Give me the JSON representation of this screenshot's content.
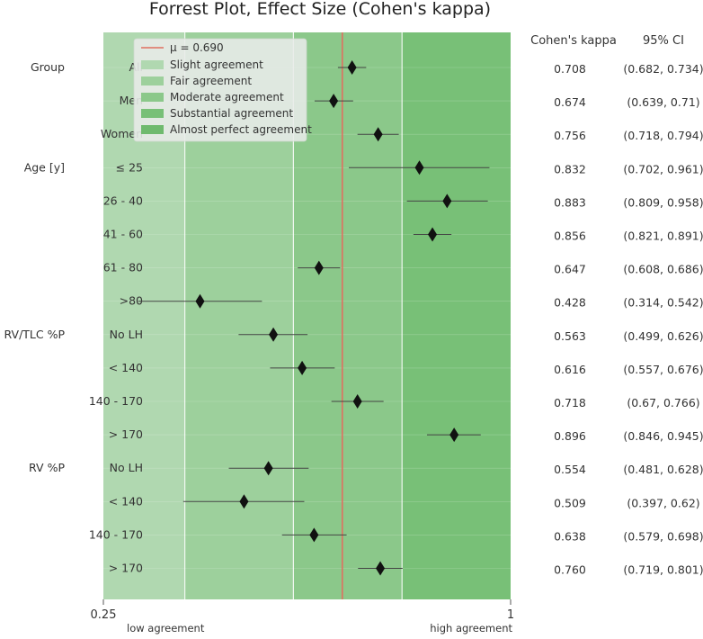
{
  "chart_data": {
    "type": "forest",
    "title": "Forrest Plot, Effect Size (Cohen's kappa)",
    "xlim": [
      0.25,
      1
    ],
    "x_ticks": [
      "0.25",
      "1"
    ],
    "x_tick_notes": [
      "low agreement",
      "high agreement"
    ],
    "reference": {
      "label": "μ = 0.690",
      "value": 0.69,
      "color": "#e07060"
    },
    "bands": [
      {
        "label": "Slight agreement",
        "from": 0.25,
        "to": 0.4,
        "color": "#b0d8b0"
      },
      {
        "label": "Fair agreement",
        "from": 0.4,
        "to": 0.6,
        "color": "#9dd09c"
      },
      {
        "label": "Moderate agreement",
        "from": 0.6,
        "to": 0.8,
        "color": "#8bc88a"
      },
      {
        "label": "Substantial agreement",
        "from": 0.8,
        "to": 1.0,
        "color": "#78c077"
      },
      {
        "label": "Almost perfect agreement",
        "color": "#6fba6e"
      }
    ],
    "column_headers": [
      "Cohen's kappa",
      "95% CI"
    ],
    "rows": [
      {
        "group": "Group",
        "label": "All",
        "kappa": 0.708,
        "low": 0.682,
        "high": 0.734,
        "kappa_text": "0.708",
        "ci_text": "(0.682, 0.734)"
      },
      {
        "group": "",
        "label": "Men",
        "kappa": 0.674,
        "low": 0.639,
        "high": 0.71,
        "kappa_text": "0.674",
        "ci_text": "(0.639, 0.71)"
      },
      {
        "group": "",
        "label": "Women",
        "kappa": 0.756,
        "low": 0.718,
        "high": 0.794,
        "kappa_text": "0.756",
        "ci_text": "(0.718, 0.794)"
      },
      {
        "group": "Age [y]",
        "label": "≤ 25",
        "kappa": 0.832,
        "low": 0.702,
        "high": 0.961,
        "kappa_text": "0.832",
        "ci_text": "(0.702, 0.961)"
      },
      {
        "group": "",
        "label": "26 - 40",
        "kappa": 0.883,
        "low": 0.809,
        "high": 0.958,
        "kappa_text": "0.883",
        "ci_text": "(0.809, 0.958)"
      },
      {
        "group": "",
        "label": "41 - 60",
        "kappa": 0.856,
        "low": 0.821,
        "high": 0.891,
        "kappa_text": "0.856",
        "ci_text": "(0.821, 0.891)"
      },
      {
        "group": "",
        "label": "61 - 80",
        "kappa": 0.647,
        "low": 0.608,
        "high": 0.686,
        "kappa_text": "0.647",
        "ci_text": "(0.608, 0.686)"
      },
      {
        "group": "",
        "label": ">80",
        "kappa": 0.428,
        "low": 0.314,
        "high": 0.542,
        "kappa_text": "0.428",
        "ci_text": "(0.314, 0.542)"
      },
      {
        "group": "RV/TLC %P",
        "label": "No LH",
        "kappa": 0.563,
        "low": 0.499,
        "high": 0.626,
        "kappa_text": "0.563",
        "ci_text": "(0.499, 0.626)"
      },
      {
        "group": "",
        "label": "< 140",
        "kappa": 0.616,
        "low": 0.557,
        "high": 0.676,
        "kappa_text": "0.616",
        "ci_text": "(0.557, 0.676)"
      },
      {
        "group": "",
        "label": "140 - 170",
        "kappa": 0.718,
        "low": 0.67,
        "high": 0.766,
        "kappa_text": "0.718",
        "ci_text": "(0.67, 0.766)"
      },
      {
        "group": "",
        "label": "> 170",
        "kappa": 0.896,
        "low": 0.846,
        "high": 0.945,
        "kappa_text": "0.896",
        "ci_text": "(0.846, 0.945)"
      },
      {
        "group": "RV %P",
        "label": "No LH",
        "kappa": 0.554,
        "low": 0.481,
        "high": 0.628,
        "kappa_text": "0.554",
        "ci_text": "(0.481, 0.628)"
      },
      {
        "group": "",
        "label": "< 140",
        "kappa": 0.509,
        "low": 0.397,
        "high": 0.62,
        "kappa_text": "0.509",
        "ci_text": "(0.397, 0.62)"
      },
      {
        "group": "",
        "label": "140 - 170",
        "kappa": 0.638,
        "low": 0.579,
        "high": 0.698,
        "kappa_text": "0.638",
        "ci_text": "(0.579, 0.698)"
      },
      {
        "group": "",
        "label": "> 170",
        "kappa": 0.76,
        "low": 0.719,
        "high": 0.801,
        "kappa_text": "0.760",
        "ci_text": "(0.719, 0.801)"
      }
    ]
  }
}
